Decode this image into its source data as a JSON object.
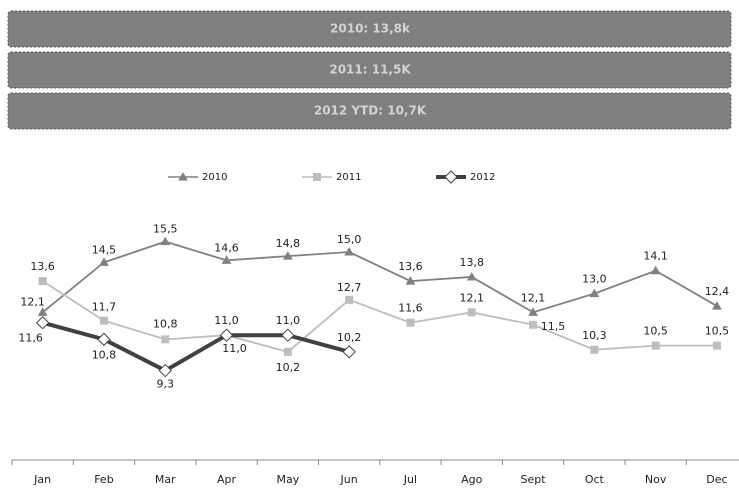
{
  "summary": [
    "2010: 13,8k",
    "2011: 11,5K",
    "2012 YTD: 10,7K"
  ],
  "chart_data": {
    "type": "line",
    "categories": [
      "Jan",
      "Feb",
      "Mar",
      "Apr",
      "May",
      "Jun",
      "Jul",
      "Ago",
      "Sept",
      "Oct",
      "Nov",
      "Dec"
    ],
    "series": [
      {
        "name": "2010",
        "color": "#808080",
        "marker": "triangle",
        "values": [
          12.1,
          14.5,
          15.5,
          14.6,
          14.8,
          15.0,
          13.6,
          13.8,
          12.1,
          13.0,
          14.1,
          12.4
        ],
        "value_labels": [
          "12,1",
          "14,5",
          "15,5",
          "14,6",
          "14,8",
          "15,0",
          "13,6",
          "13,8",
          "12,1",
          "13,0",
          "14,1",
          "12,4"
        ]
      },
      {
        "name": "2011",
        "color": "#bdbdbd",
        "marker": "square",
        "values": [
          13.6,
          11.7,
          10.8,
          11.0,
          10.2,
          12.7,
          11.6,
          12.1,
          11.5,
          10.3,
          10.5,
          10.5
        ],
        "value_labels": [
          "13,6",
          "11,7",
          "10,8",
          "11,0",
          "10,2",
          "12,7",
          "11,6",
          "12,1",
          "11,5",
          "10,3",
          "10,5",
          "10,5"
        ]
      },
      {
        "name": "2012",
        "color": "#404040",
        "marker": "diamond",
        "values": [
          11.6,
          10.8,
          9.3,
          11.0,
          11.0,
          10.2,
          null,
          null,
          null,
          null,
          null,
          null
        ],
        "value_labels": [
          "11,6",
          "10,8",
          "9,3",
          "11,0",
          "11,0",
          "10,2",
          null,
          null,
          null,
          null,
          null,
          null
        ]
      }
    ],
    "ylim": [
      5,
      20
    ],
    "legend": "top"
  }
}
